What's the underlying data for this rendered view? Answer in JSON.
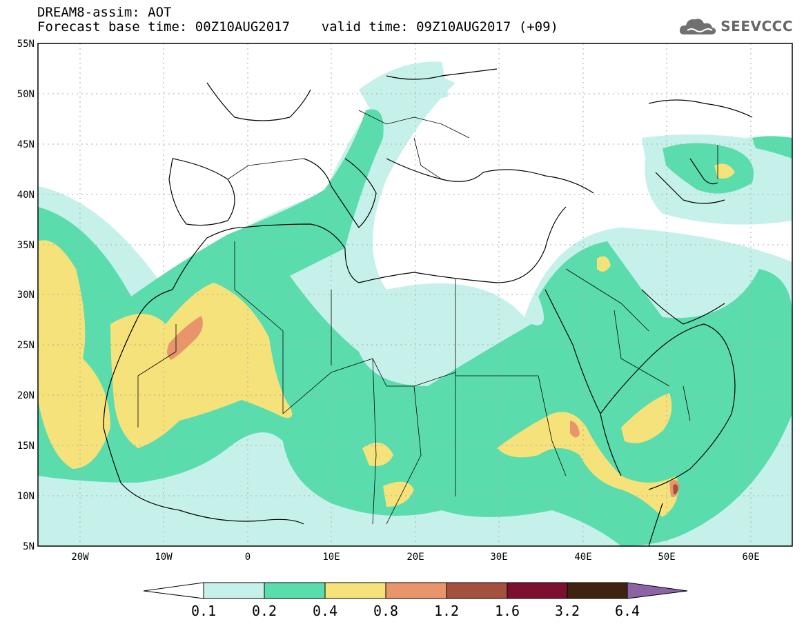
{
  "header": {
    "line1": "DREAM8-assim: AOT",
    "line2": "Forecast base time: 00Z10AUG2017    valid time: 09Z10AUG2017 (+09)"
  },
  "logo": {
    "text": "SEEVCCC",
    "icon": "cloud-icon"
  },
  "map": {
    "lon_range": [
      -25,
      65
    ],
    "lat_range": [
      5,
      55
    ],
    "lat_ticks": [
      {
        "value": 55,
        "label": "55N"
      },
      {
        "value": 50,
        "label": "50N"
      },
      {
        "value": 45,
        "label": "45N"
      },
      {
        "value": 40,
        "label": "40N"
      },
      {
        "value": 35,
        "label": "35N"
      },
      {
        "value": 30,
        "label": "30N"
      },
      {
        "value": 25,
        "label": "25N"
      },
      {
        "value": 20,
        "label": "20N"
      },
      {
        "value": 15,
        "label": "15N"
      },
      {
        "value": 10,
        "label": "10N"
      },
      {
        "value": 5,
        "label": "5N"
      }
    ],
    "lon_ticks": [
      {
        "value": -20,
        "label": "20W"
      },
      {
        "value": -10,
        "label": "10W"
      },
      {
        "value": 0,
        "label": "0"
      },
      {
        "value": 10,
        "label": "10E"
      },
      {
        "value": 20,
        "label": "20E"
      },
      {
        "value": 30,
        "label": "30E"
      },
      {
        "value": 40,
        "label": "40E"
      },
      {
        "value": 50,
        "label": "50E"
      },
      {
        "value": 60,
        "label": "60E"
      }
    ],
    "colors": {
      "c1": "#c6f1ea",
      "c2": "#5bdcac",
      "c3": "#f6e27a",
      "c4": "#e9956b",
      "c5": "#a5503e",
      "c6": "#7d1030",
      "c7": "#3e2410",
      "c8": "#8c64a6"
    }
  },
  "colorbar": {
    "labels": [
      "0.1",
      "0.2",
      "0.4",
      "0.8",
      "1.2",
      "1.6",
      "3.2",
      "6.4"
    ],
    "colors": [
      "#ffffff",
      "#c6f1ea",
      "#5bdcac",
      "#f6e27a",
      "#e9956b",
      "#a5503e",
      "#7d1030",
      "#3e2410",
      "#8c64a6"
    ]
  }
}
